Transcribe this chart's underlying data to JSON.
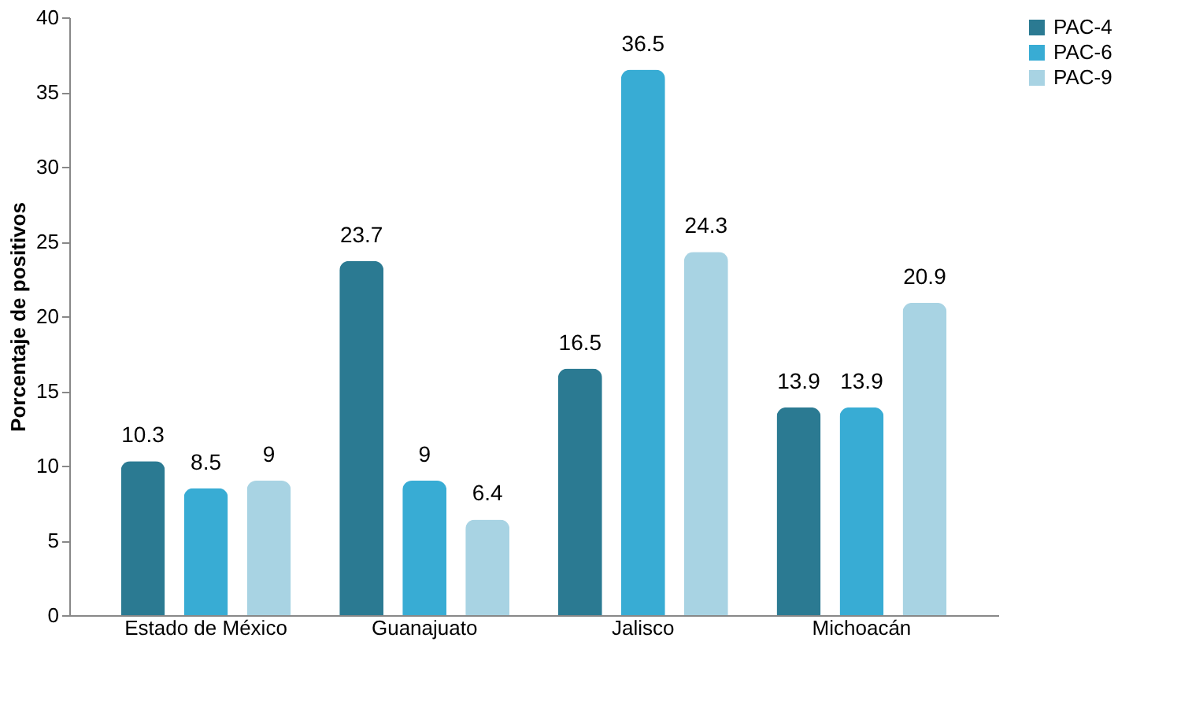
{
  "chart_data": {
    "type": "bar",
    "ylabel": "Porcentaje de positivos",
    "categories": [
      "Estado de México",
      "Guanajuato",
      "Jalisco",
      "Michoacán"
    ],
    "series": [
      {
        "name": "PAC-4",
        "color": "#2b7a92",
        "values": [
          10.3,
          23.7,
          16.5,
          13.9
        ]
      },
      {
        "name": "PAC-6",
        "color": "#38acd4",
        "values": [
          8.5,
          9,
          36.5,
          13.9
        ]
      },
      {
        "name": "PAC-9",
        "color": "#a8d3e3",
        "values": [
          9,
          6.4,
          24.3,
          20.9
        ]
      }
    ],
    "ylim": [
      0,
      40
    ],
    "yticks": [
      0,
      5,
      10,
      15,
      20,
      25,
      30,
      35,
      40
    ],
    "grid": false,
    "legend": "right",
    "data_labels": true
  }
}
